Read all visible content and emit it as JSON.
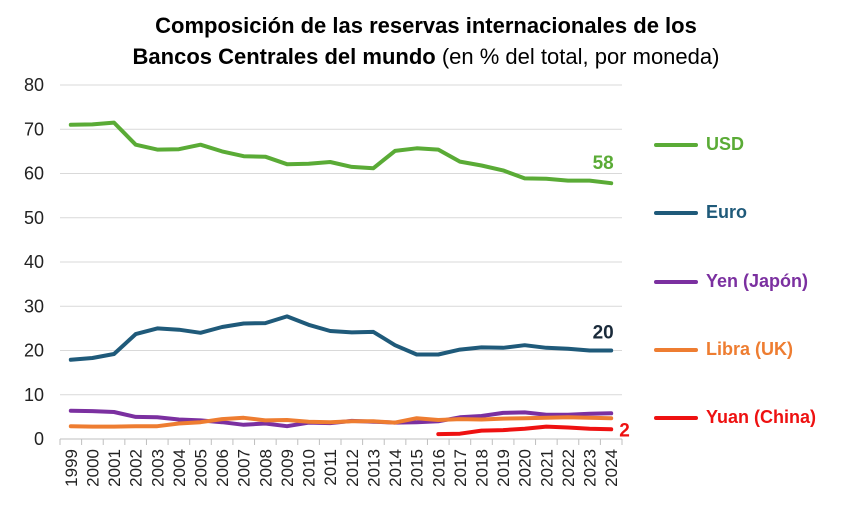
{
  "chart_data": {
    "type": "line",
    "title": "Composición de las reservas internacionales de los",
    "title_line2_bold": "Bancos Centrales del mundo",
    "subtitle": "(en % del total, por moneda)",
    "xlabel": "",
    "ylabel": "",
    "ylim": [
      0,
      80
    ],
    "yticks": [
      0,
      10,
      20,
      30,
      40,
      50,
      60,
      70,
      80
    ],
    "grid": "horizontal",
    "legend_position": "right",
    "categories": [
      "1999",
      "2000",
      "2001",
      "2002",
      "2003",
      "2004",
      "2005",
      "2006",
      "2007",
      "2008",
      "2009",
      "2010",
      "2011",
      "2012",
      "2013",
      "2014",
      "2015",
      "2016",
      "2017",
      "2018",
      "2019",
      "2020",
      "2021",
      "2022",
      "2023",
      "2024"
    ],
    "series": [
      {
        "name": "USD",
        "color": "#5aab36",
        "end_label": "58",
        "values": [
          71.0,
          71.1,
          71.5,
          66.5,
          65.4,
          65.5,
          66.5,
          65.0,
          63.9,
          63.8,
          62.1,
          62.2,
          62.6,
          61.5,
          61.2,
          65.1,
          65.7,
          65.4,
          62.7,
          61.8,
          60.7,
          58.9,
          58.8,
          58.4,
          58.4,
          57.8
        ]
      },
      {
        "name": "Euro",
        "color": "#1f5a7a",
        "end_label": "20",
        "values": [
          17.9,
          18.3,
          19.2,
          23.7,
          25.0,
          24.7,
          24.0,
          25.3,
          26.1,
          26.2,
          27.7,
          25.8,
          24.4,
          24.1,
          24.2,
          21.2,
          19.1,
          19.1,
          20.2,
          20.7,
          20.6,
          21.2,
          20.6,
          20.4,
          20.0,
          20.0
        ]
      },
      {
        "name": "Yen (Japón)",
        "color": "#7b30a0",
        "end_label": "",
        "values": [
          6.4,
          6.3,
          6.1,
          5.0,
          4.9,
          4.4,
          4.2,
          3.8,
          3.2,
          3.5,
          2.9,
          3.7,
          3.6,
          4.1,
          3.9,
          3.7,
          3.8,
          4.0,
          4.9,
          5.2,
          5.9,
          6.0,
          5.5,
          5.5,
          5.7,
          5.8
        ]
      },
      {
        "name": "Libra (UK)",
        "color": "#ee7d31",
        "end_label": "",
        "values": [
          2.9,
          2.8,
          2.8,
          2.9,
          2.9,
          3.5,
          3.8,
          4.5,
          4.8,
          4.2,
          4.3,
          3.9,
          3.8,
          4.0,
          4.0,
          3.7,
          4.7,
          4.3,
          4.5,
          4.4,
          4.6,
          4.7,
          4.8,
          4.9,
          4.8,
          4.7
        ]
      },
      {
        "name": "Yuan (China)",
        "color": "#ee1111",
        "end_label": "2",
        "values": [
          null,
          null,
          null,
          null,
          null,
          null,
          null,
          null,
          null,
          null,
          null,
          null,
          null,
          null,
          null,
          null,
          null,
          1.1,
          1.2,
          1.9,
          2.0,
          2.3,
          2.8,
          2.6,
          2.3,
          2.2
        ]
      }
    ]
  }
}
